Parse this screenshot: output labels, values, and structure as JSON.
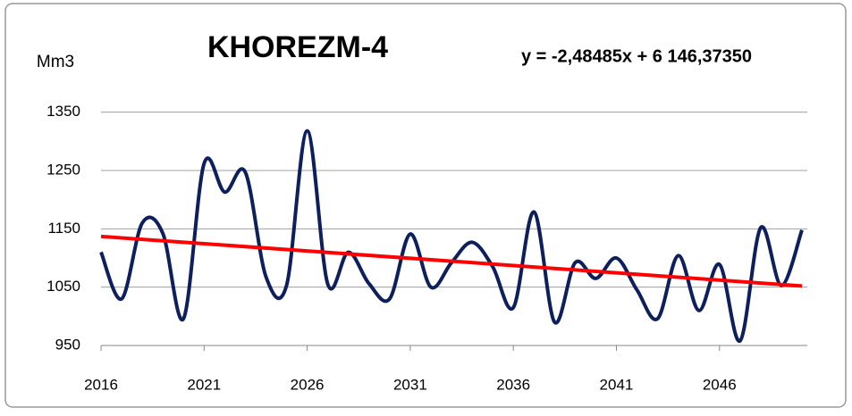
{
  "chart_data": {
    "type": "line",
    "title": "KHOREZM-4",
    "y_label": "Mm3",
    "annotation": "y = -2,48485x + 6 146,37350",
    "x": [
      2016,
      2017,
      2018,
      2019,
      2020,
      2021,
      2022,
      2023,
      2024,
      2025,
      2026,
      2027,
      2028,
      2029,
      2030,
      2031,
      2032,
      2033,
      2034,
      2035,
      2036,
      2037,
      2038,
      2039,
      2040,
      2041,
      2042,
      2043,
      2044,
      2045,
      2046,
      2047,
      2048,
      2049,
      2050
    ],
    "series": [
      {
        "color": "#0d1f5c",
        "values": [
          1110,
          1030,
          1160,
          1142,
          996,
          1262,
          1213,
          1247,
          1068,
          1053,
          1318,
          1055,
          1110,
          1056,
          1030,
          1141,
          1050,
          1092,
          1127,
          1085,
          1015,
          1179,
          990,
          1092,
          1065,
          1100,
          1045,
          996,
          1104,
          1010,
          1089,
          958,
          1152,
          1053,
          1148
        ]
      }
    ],
    "trend": {
      "color": "#ff0000",
      "x": [
        2016,
        2050
      ],
      "values": [
        1137,
        1052
      ]
    },
    "xlim": [
      2016,
      2050
    ],
    "xticks": [
      2016,
      2021,
      2026,
      2031,
      2036,
      2041,
      2046
    ],
    "ylim": [
      950,
      1400
    ],
    "yticks": [
      950,
      1050,
      1150,
      1250,
      1350
    ],
    "grid": true
  }
}
